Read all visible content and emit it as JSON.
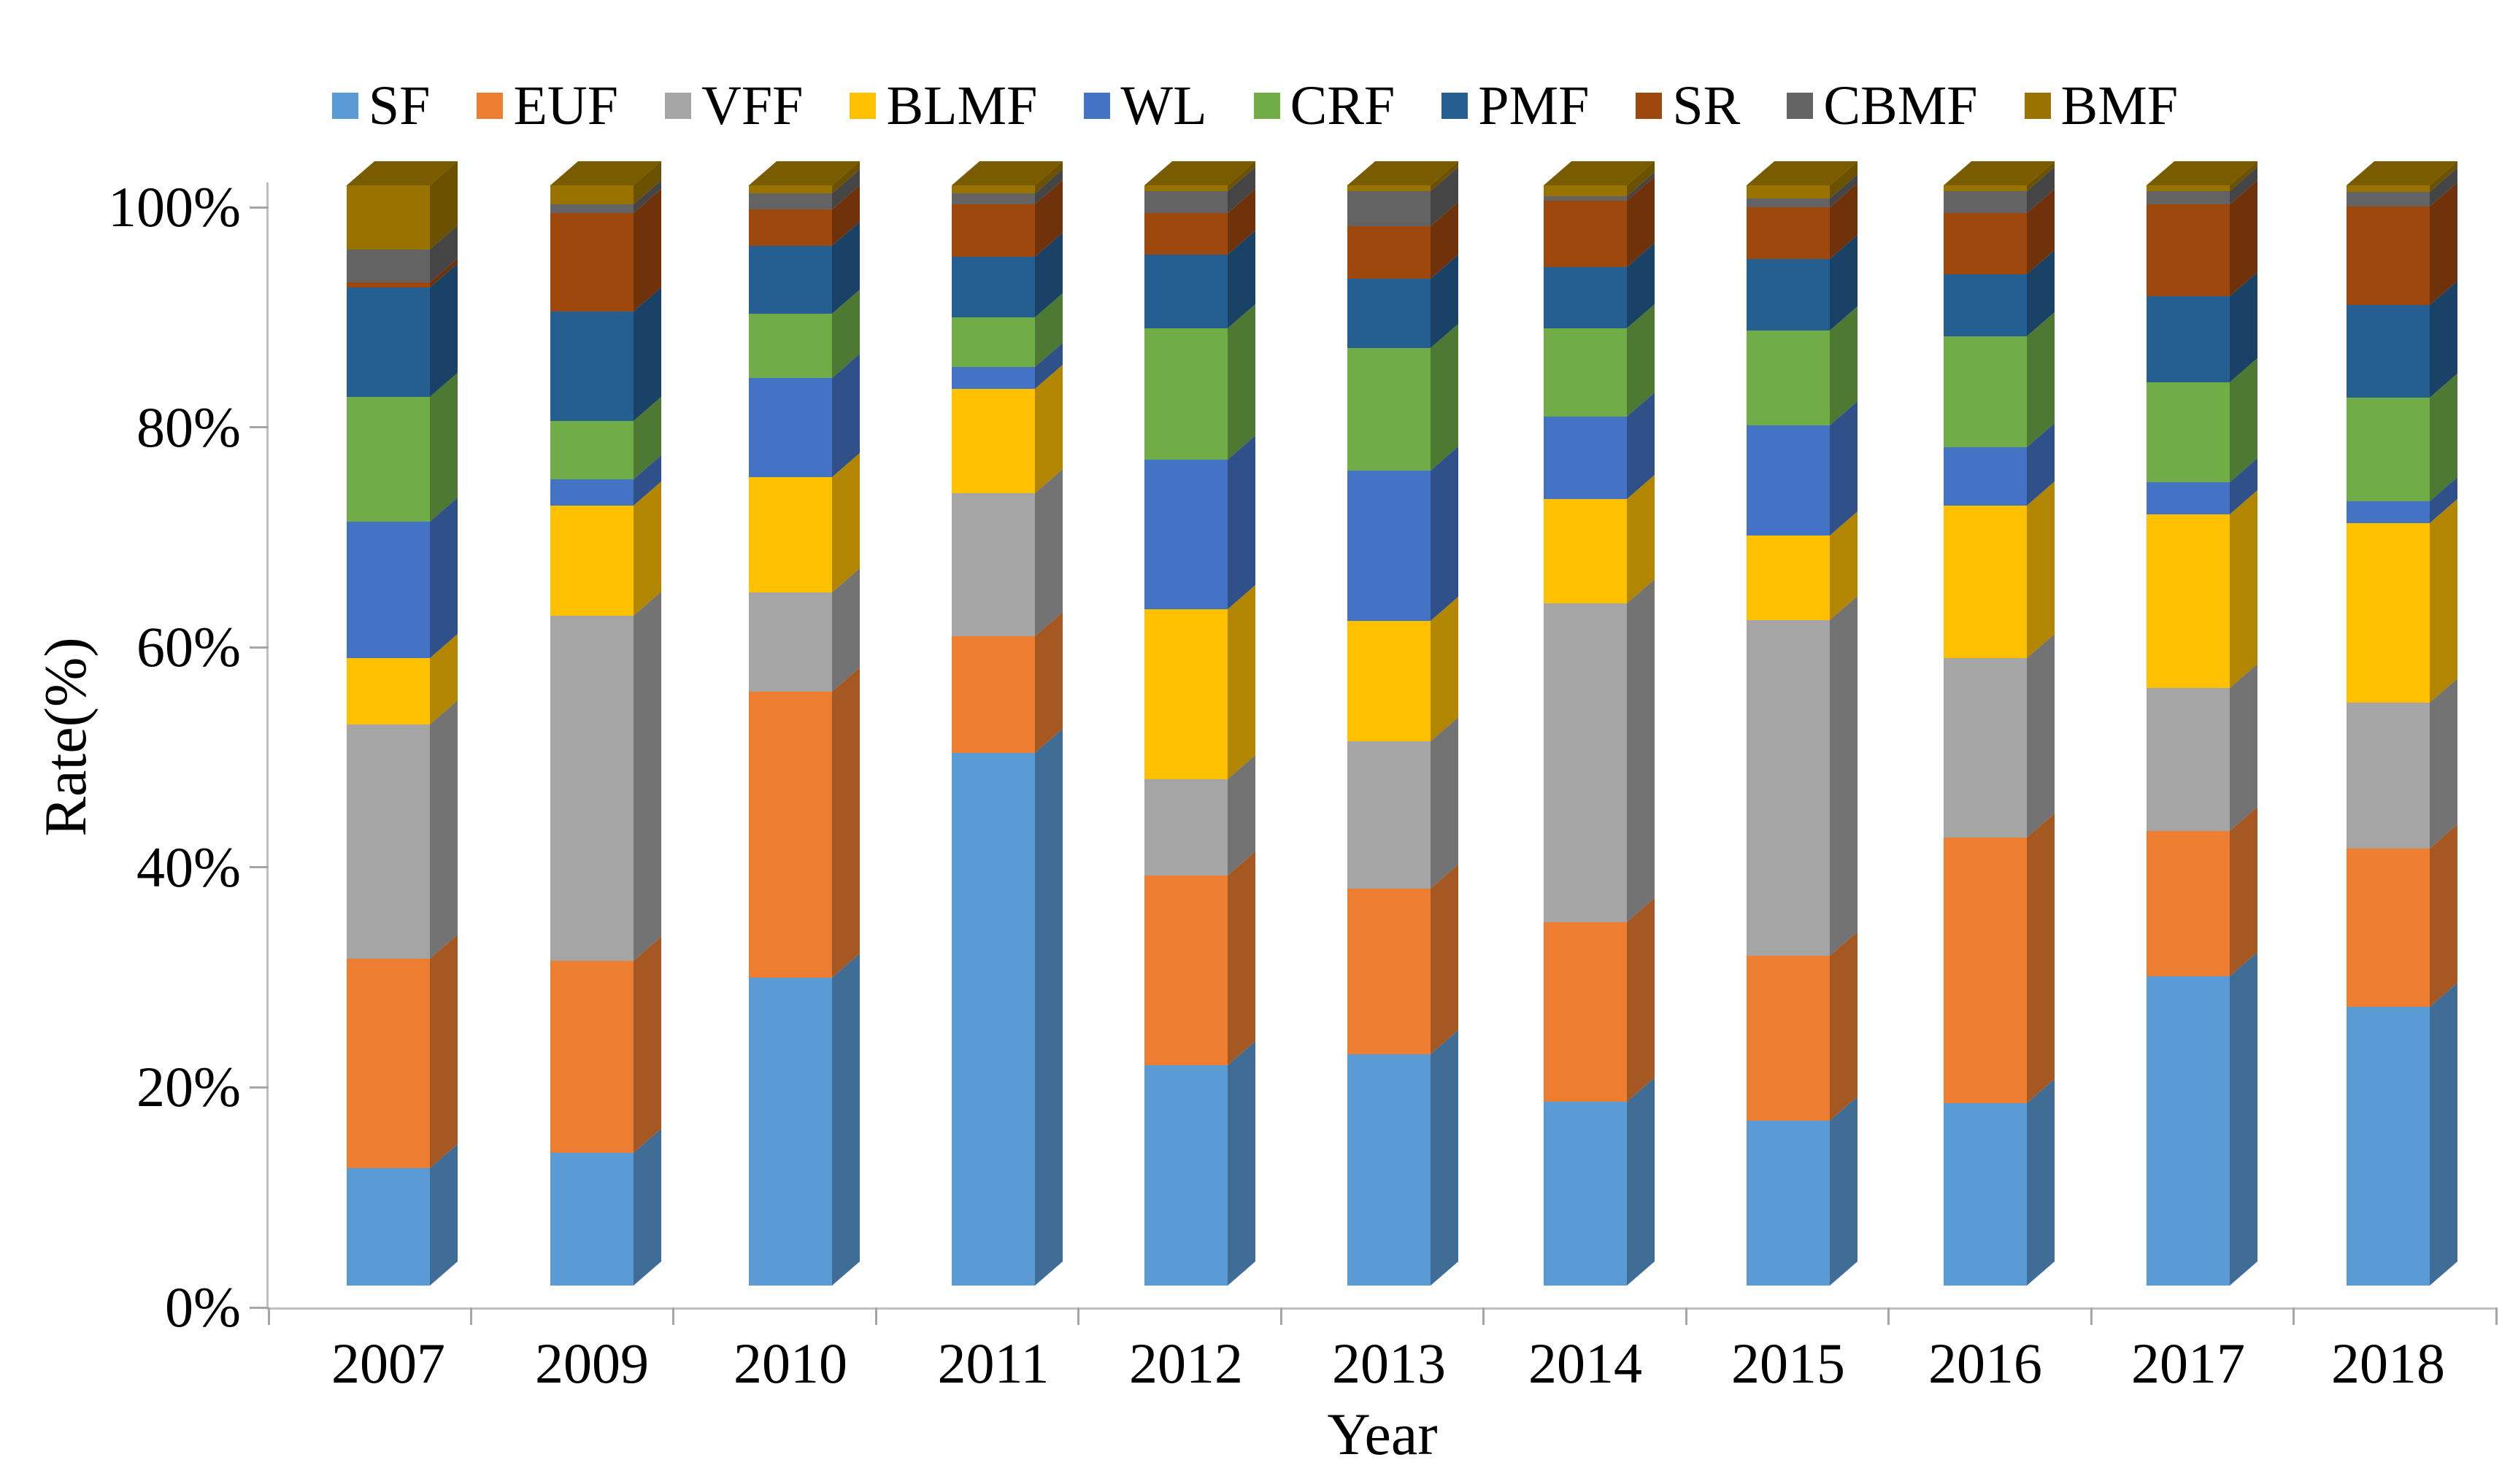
{
  "chart_data": {
    "type": "bar",
    "stacked": true,
    "percent_stacked": true,
    "title": "",
    "xlabel": "Year",
    "ylabel": "Rate(%)",
    "ylim": [
      0,
      100
    ],
    "ytick_labels": [
      "0%",
      "20%",
      "40%",
      "60%",
      "80%",
      "100%"
    ],
    "legend_position": "top",
    "grid": false,
    "effect": "3d-extruded-columns",
    "categories": [
      "2007",
      "2009",
      "2010",
      "2011",
      "2012",
      "2013",
      "2014",
      "2015",
      "2016",
      "2017",
      "2018"
    ],
    "series": [
      {
        "name": "SF",
        "color": "#5B9BD5",
        "values": [
          10.7,
          12.1,
          28.0,
          48.4,
          20.0,
          21.0,
          16.7,
          15.0,
          16.6,
          28.1,
          25.3
        ]
      },
      {
        "name": "EUF",
        "color": "#ED7D31",
        "values": [
          19.0,
          17.4,
          26.0,
          10.6,
          17.3,
          15.1,
          16.3,
          15.0,
          24.1,
          13.2,
          14.4
        ]
      },
      {
        "name": "VFF",
        "color": "#A5A5A5",
        "values": [
          21.3,
          31.4,
          9.0,
          13.0,
          8.7,
          13.4,
          29.0,
          30.5,
          16.3,
          13.0,
          13.3
        ]
      },
      {
        "name": "BLMF",
        "color": "#FFC000",
        "values": [
          6.0,
          10.0,
          10.5,
          9.5,
          15.5,
          10.9,
          9.5,
          7.7,
          13.9,
          15.8,
          16.3
        ]
      },
      {
        "name": "WL",
        "color": "#4472C4",
        "values": [
          12.4,
          2.4,
          9.0,
          2.0,
          13.6,
          13.7,
          7.5,
          10.0,
          5.3,
          2.9,
          2.0
        ]
      },
      {
        "name": "CRF",
        "color": "#70AD47",
        "values": [
          11.4,
          5.3,
          5.8,
          4.5,
          11.9,
          11.1,
          8.0,
          8.6,
          10.1,
          9.1,
          9.4
        ]
      },
      {
        "name": "PMF",
        "color": "#255E91",
        "values": [
          9.9,
          9.9,
          6.2,
          5.5,
          6.7,
          6.3,
          5.6,
          6.5,
          5.6,
          7.8,
          8.4
        ]
      },
      {
        "name": "SR",
        "color": "#9E480E",
        "values": [
          0.5,
          9.0,
          3.3,
          4.8,
          3.8,
          4.8,
          6.0,
          4.7,
          5.6,
          8.4,
          9.0
        ]
      },
      {
        "name": "CBMF",
        "color": "#636363",
        "values": [
          3.0,
          0.8,
          1.5,
          1.0,
          2.0,
          3.2,
          0.4,
          0.8,
          2.0,
          1.2,
          1.3
        ]
      },
      {
        "name": "BMF",
        "color": "#997300",
        "values": [
          5.8,
          1.7,
          0.7,
          0.7,
          0.5,
          0.5,
          1.0,
          1.2,
          0.5,
          0.5,
          0.6
        ]
      }
    ]
  },
  "axis_colors": {
    "line": "#bfbfbf",
    "tick": "#a6a6a6"
  }
}
